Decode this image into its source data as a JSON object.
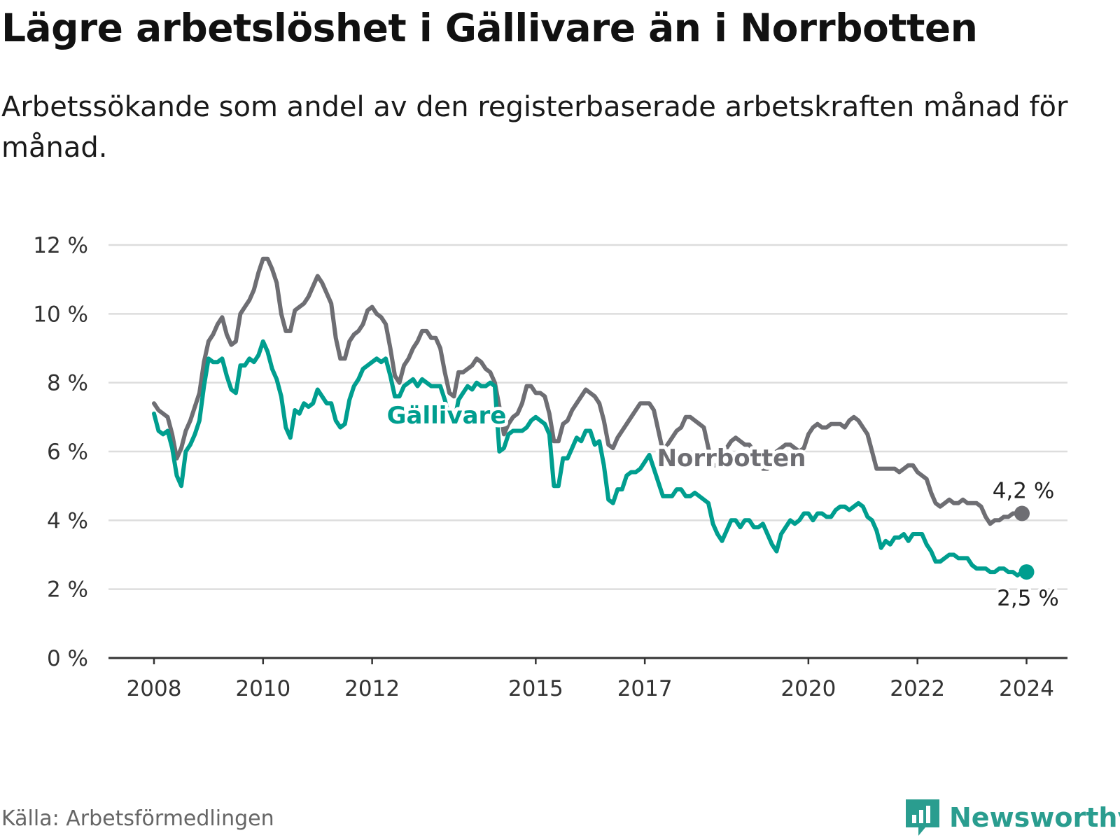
{
  "header": {
    "title": "Lägre arbetslöshet i Gällivare än i Norrbotten",
    "subtitle": "Arbetssökande som andel av den registerbaserade arbetskraften månad för månad."
  },
  "footer": {
    "source": "Källa: Arbetsförmedlingen",
    "brand": "Newsworthy"
  },
  "colors": {
    "gallivare": "#009e8f",
    "norrbotten": "#6e6e73",
    "grid": "#dddddd",
    "axis": "#333333",
    "brand": "#2a9d8f"
  },
  "chart_data": {
    "type": "line",
    "title": "Lägre arbetslöshet i Gällivare än i Norrbotten",
    "subtitle": "Arbetssökande som andel av den registerbaserade arbetskraften månad för månad.",
    "xlabel": "",
    "ylabel": "",
    "x_start": "2008-01",
    "x_step": "month",
    "xlim": [
      2007.6,
      2024.9
    ],
    "ylim": [
      0,
      12
    ],
    "y_ticks": [
      0,
      2,
      4,
      6,
      8,
      10,
      12
    ],
    "y_tick_labels": [
      "0 %",
      "2 %",
      "4 %",
      "6 %",
      "8 %",
      "10 %",
      "12 %"
    ],
    "x_ticks": [
      2008,
      2010,
      2012,
      2015,
      2017,
      2020,
      2022,
      2024
    ],
    "x_tick_labels": [
      "2008",
      "2010",
      "2012",
      "2015",
      "2017",
      "2020",
      "2022",
      "2024"
    ],
    "grid": true,
    "series": [
      {
        "name": "Norrbotten",
        "label": "Norrbotten",
        "end_label": "4,2 %",
        "values": [
          7.4,
          7.2,
          7.1,
          7.0,
          6.5,
          5.8,
          6.1,
          6.6,
          6.9,
          7.3,
          7.7,
          8.6,
          9.2,
          9.4,
          9.7,
          9.9,
          9.4,
          9.1,
          9.2,
          10.0,
          10.2,
          10.4,
          10.7,
          11.2,
          11.6,
          11.6,
          11.3,
          10.9,
          10.0,
          9.5,
          9.5,
          10.1,
          10.2,
          10.3,
          10.5,
          10.8,
          11.1,
          10.9,
          10.6,
          10.3,
          9.3,
          8.7,
          8.7,
          9.2,
          9.4,
          9.5,
          9.7,
          10.1,
          10.2,
          10.0,
          9.9,
          9.7,
          9.0,
          8.2,
          8.0,
          8.5,
          8.7,
          9.0,
          9.2,
          9.5,
          9.5,
          9.3,
          9.3,
          9.0,
          8.3,
          7.7,
          7.6,
          8.3,
          8.3,
          8.4,
          8.5,
          8.7,
          8.6,
          8.4,
          8.3,
          8.0,
          7.3,
          6.5,
          6.8,
          7.0,
          7.1,
          7.4,
          7.9,
          7.9,
          7.7,
          7.7,
          7.6,
          7.1,
          6.3,
          6.3,
          6.8,
          6.9,
          7.2,
          7.4,
          7.6,
          7.8,
          7.7,
          7.6,
          7.4,
          6.9,
          6.2,
          6.1,
          6.4,
          6.6,
          6.8,
          7.0,
          7.2,
          7.4,
          7.4,
          7.4,
          7.2,
          6.6,
          6.0,
          6.2,
          6.4,
          6.6,
          6.7,
          7.0,
          7.0,
          6.9,
          6.8,
          6.7,
          6.1,
          5.6,
          5.6,
          5.9,
          6.1,
          6.3,
          6.4,
          6.3,
          6.2,
          6.2,
          6.0,
          5.7,
          5.5,
          5.5,
          5.8,
          6.0,
          6.1,
          6.2,
          6.2,
          6.1,
          6.0,
          6.1,
          6.5,
          6.7,
          6.8,
          6.7,
          6.7,
          6.8,
          6.8,
          6.8,
          6.7,
          6.9,
          7.0,
          6.9,
          6.7,
          6.5,
          6.0,
          5.5,
          5.5,
          5.5,
          5.5,
          5.5,
          5.4,
          5.5,
          5.6,
          5.6,
          5.4,
          5.3,
          5.2,
          4.8,
          4.5,
          4.4,
          4.5,
          4.6,
          4.5,
          4.5,
          4.6,
          4.5,
          4.5,
          4.5,
          4.4,
          4.1,
          3.9,
          4.0,
          4.0,
          4.1,
          4.1,
          4.2,
          4.2,
          4.2
        ]
      },
      {
        "name": "Gällivare",
        "label": "Gällivare",
        "end_label": "2,5 %",
        "values": [
          7.1,
          6.6,
          6.5,
          6.6,
          6.1,
          5.3,
          5.0,
          6.0,
          6.2,
          6.5,
          6.9,
          7.9,
          8.7,
          8.6,
          8.6,
          8.7,
          8.2,
          7.8,
          7.7,
          8.5,
          8.5,
          8.7,
          8.6,
          8.8,
          9.2,
          8.9,
          8.4,
          8.1,
          7.6,
          6.7,
          6.4,
          7.2,
          7.1,
          7.4,
          7.3,
          7.4,
          7.8,
          7.6,
          7.4,
          7.4,
          6.9,
          6.7,
          6.8,
          7.5,
          7.9,
          8.1,
          8.4,
          8.5,
          8.6,
          8.7,
          8.6,
          8.7,
          8.2,
          7.6,
          7.6,
          7.9,
          8.0,
          8.1,
          7.9,
          8.1,
          8.0,
          7.9,
          7.9,
          7.9,
          7.5,
          7.0,
          6.8,
          7.5,
          7.7,
          7.9,
          7.8,
          8.0,
          7.9,
          7.9,
          8.0,
          7.9,
          6.0,
          6.1,
          6.5,
          6.6,
          6.6,
          6.6,
          6.7,
          6.9,
          7.0,
          6.9,
          6.8,
          6.5,
          5.0,
          5.0,
          5.8,
          5.8,
          6.1,
          6.4,
          6.3,
          6.6,
          6.6,
          6.2,
          6.3,
          5.6,
          4.6,
          4.5,
          4.9,
          4.9,
          5.3,
          5.4,
          5.4,
          5.5,
          5.7,
          5.9,
          5.5,
          5.1,
          4.7,
          4.7,
          4.7,
          4.9,
          4.9,
          4.7,
          4.7,
          4.8,
          4.7,
          4.6,
          4.5,
          3.9,
          3.6,
          3.4,
          3.7,
          4.0,
          4.0,
          3.8,
          4.0,
          4.0,
          3.8,
          3.8,
          3.9,
          3.6,
          3.3,
          3.1,
          3.6,
          3.8,
          4.0,
          3.9,
          4.0,
          4.2,
          4.2,
          4.0,
          4.2,
          4.2,
          4.1,
          4.1,
          4.3,
          4.4,
          4.4,
          4.3,
          4.4,
          4.5,
          4.4,
          4.1,
          4.0,
          3.7,
          3.2,
          3.4,
          3.3,
          3.5,
          3.5,
          3.6,
          3.4,
          3.6,
          3.6,
          3.6,
          3.3,
          3.1,
          2.8,
          2.8,
          2.9,
          3.0,
          3.0,
          2.9,
          2.9,
          2.9,
          2.7,
          2.6,
          2.6,
          2.6,
          2.5,
          2.5,
          2.6,
          2.6,
          2.5,
          2.5,
          2.4,
          2.5,
          2.5
        ]
      }
    ]
  }
}
